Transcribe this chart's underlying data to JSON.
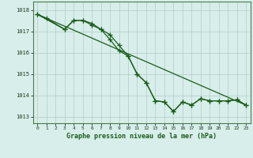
{
  "title": "Graphe pression niveau de la mer (hPa)",
  "line_color": "#1a5c1a",
  "bg_color": "#d8eeea",
  "grid_color": "#b0ccc8",
  "line1_x": [
    0,
    1,
    3,
    4,
    5,
    6,
    7,
    8,
    9,
    10,
    11,
    12,
    13,
    14,
    15,
    16,
    17,
    18,
    19,
    20,
    21,
    22,
    23
  ],
  "line1_y": [
    1017.8,
    1017.62,
    1017.1,
    1017.52,
    1017.52,
    1017.3,
    1017.1,
    1016.85,
    1016.35,
    1015.85,
    1015.0,
    1014.6,
    1013.75,
    1013.7,
    1013.25,
    1013.7,
    1013.55,
    1013.85,
    1013.75,
    1013.75,
    1013.75,
    1013.8,
    1013.55
  ],
  "line2_x": [
    0,
    3,
    4,
    5,
    6,
    7,
    8,
    9,
    10,
    11,
    12,
    13,
    14,
    15,
    16,
    17,
    18,
    19,
    20,
    21,
    22,
    23
  ],
  "line2_y": [
    1017.8,
    1017.1,
    1017.52,
    1017.52,
    1017.38,
    1017.1,
    1016.62,
    1016.1,
    1015.85,
    1015.0,
    1014.6,
    1013.75,
    1013.7,
    1013.25,
    1013.7,
    1013.55,
    1013.85,
    1013.75,
    1013.75,
    1013.75,
    1013.8,
    1013.55
  ],
  "line3_x": [
    0,
    23
  ],
  "line3_y": [
    1017.8,
    1013.55
  ],
  "ylim": [
    1012.7,
    1018.4
  ],
  "yticks": [
    1013,
    1014,
    1015,
    1016,
    1017,
    1018
  ],
  "xticks": [
    0,
    1,
    2,
    3,
    4,
    5,
    6,
    7,
    8,
    9,
    10,
    11,
    12,
    13,
    14,
    15,
    16,
    17,
    18,
    19,
    20,
    21,
    22,
    23
  ],
  "marker": "+",
  "markersize": 4.0,
  "linewidth": 0.9
}
